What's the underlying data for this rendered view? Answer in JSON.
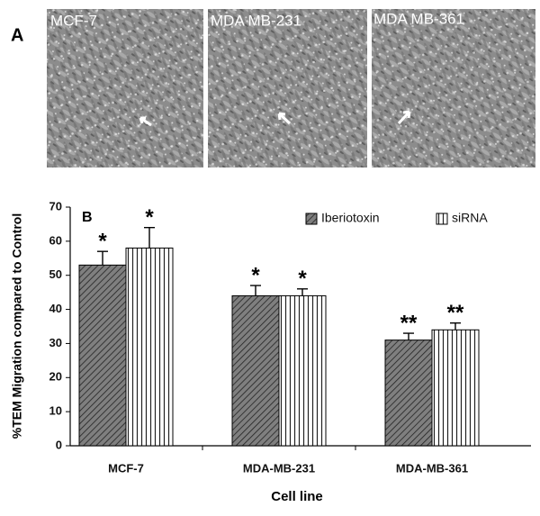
{
  "panel_a": {
    "label": "A",
    "images": [
      {
        "label": "MCF-7"
      },
      {
        "label": "MDA MB-231"
      },
      {
        "label": "MDA MB-361"
      }
    ]
  },
  "chart_data": {
    "type": "bar",
    "panel_label": "B",
    "categories": [
      "MCF-7",
      "MDA-MB-231",
      "MDA-MB-361"
    ],
    "series": [
      {
        "name": "Iberiotoxin",
        "color": "#7f7f7f",
        "values": [
          53,
          44,
          31
        ],
        "errors": [
          4,
          3,
          2
        ],
        "significance": [
          "*",
          "*",
          "**"
        ]
      },
      {
        "name": "siRNA",
        "color": "#ffffff",
        "values": [
          58,
          44,
          34
        ],
        "errors": [
          6,
          2,
          2
        ],
        "significance": [
          "*",
          "*",
          "**"
        ]
      }
    ],
    "xlabel": "Cell line",
    "ylabel": "%TEM Migration compared to Control",
    "ylim": [
      0,
      70
    ],
    "yticks": [
      0,
      10,
      20,
      30,
      40,
      50,
      60,
      70
    ],
    "legend": "upper right",
    "grid": false
  }
}
